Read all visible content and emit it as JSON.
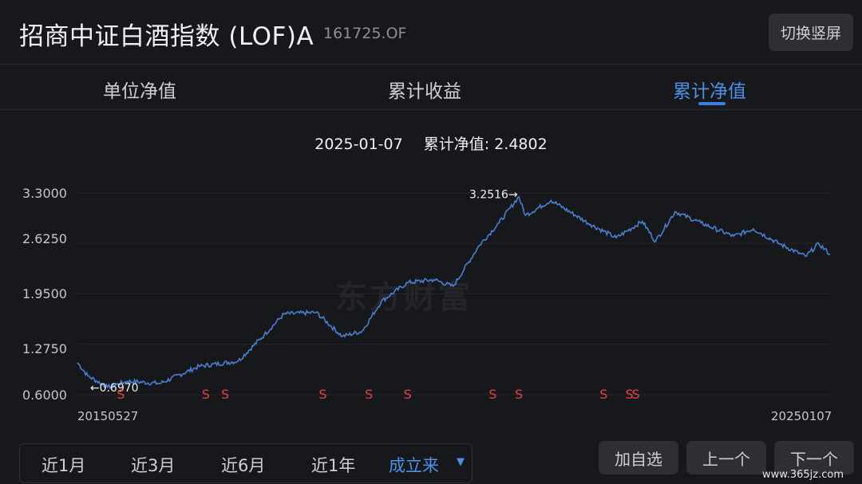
{
  "header": {
    "fund_name": "招商中证白酒指数 (LOF)A",
    "fund_code": "161725.OF",
    "switch_label": "切换竖屏"
  },
  "tabs": [
    {
      "label": "单位净值",
      "active": false
    },
    {
      "label": "累计收益",
      "active": false
    },
    {
      "label": "累计净值",
      "active": true
    }
  ],
  "readout": {
    "date": "2025-01-07",
    "label": "累计净值: 2.4802"
  },
  "chart_data": {
    "type": "line",
    "series": [
      {
        "x": [
          "2015-05-27",
          "2015-07",
          "2015-10",
          "2016-01",
          "2016-06",
          "2016-12",
          "2017-06",
          "2017-10",
          "2018-01",
          "2018-06",
          "2018-10",
          "2019-01",
          "2019-04",
          "2019-08",
          "2019-12",
          "2020-03",
          "2020-07",
          "2020-10",
          "2021-01",
          "2021-02",
          "2021-06",
          "2021-12",
          "2022-04",
          "2022-08",
          "2022-10",
          "2023-01",
          "2023-05",
          "2023-10",
          "2024-01",
          "2024-05",
          "2024-09",
          "2024-11",
          "2025-01-07"
        ],
        "y": [
          1.03,
          0.85,
          0.7,
          0.78,
          0.75,
          0.98,
          1.05,
          1.4,
          1.68,
          1.7,
          1.38,
          1.45,
          1.85,
          2.1,
          2.14,
          2.05,
          2.6,
          2.9,
          3.25,
          3.0,
          3.2,
          2.88,
          2.7,
          2.92,
          2.65,
          3.05,
          2.9,
          2.72,
          2.82,
          2.62,
          2.45,
          2.62,
          2.48
        ],
        "color": "#4a7fd0"
      }
    ],
    "ylim": [
      0.6,
      3.3
    ],
    "yticks": [
      "3.3000",
      "2.6250",
      "1.9500",
      "1.2750",
      "0.6000"
    ],
    "xticks": [
      "20150527",
      "20250107"
    ],
    "annotations": [
      {
        "text": "←0.6970",
        "x": "2015-10",
        "y": 0.697
      },
      {
        "text": "3.2516→",
        "x": "2021-01",
        "y": 3.2516
      }
    ],
    "markers": {
      "label": "S",
      "color": "#e04343",
      "dates": [
        "2015-12",
        "2017-01",
        "2017-04",
        "2018-07",
        "2019-02",
        "2019-08",
        "2020-09",
        "2021-01",
        "2022-02",
        "2022-06",
        "2022-07"
      ]
    },
    "watermark": "东方财富",
    "grid": "horizontal"
  },
  "periods": [
    {
      "label": "近1月",
      "active": false
    },
    {
      "label": "近3月",
      "active": false
    },
    {
      "label": "近6月",
      "active": false
    },
    {
      "label": "近1年",
      "active": false
    },
    {
      "label": "成立来",
      "active": true
    }
  ],
  "caret_glyph": "▼",
  "buttons": {
    "add": "加自选",
    "prev": "上一个",
    "next": "下一个"
  },
  "site_watermark": "www.365jz.com"
}
